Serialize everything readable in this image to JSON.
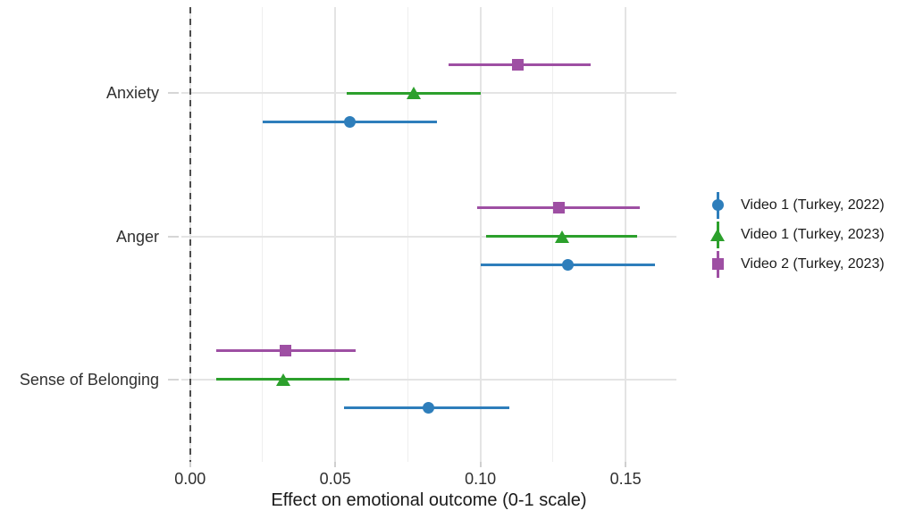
{
  "chart_data": {
    "type": "scatter",
    "subtype": "dot-whisker-pointrange-forest-plot",
    "title": "",
    "xlabel": "Effect on emotional outcome (0-1 scale)",
    "ylabel": "",
    "categories": [
      "Anxiety",
      "Anger",
      "Sense of Belonging"
    ],
    "x_ticks": [
      {
        "value": 0.0,
        "label": "0.00"
      },
      {
        "value": 0.05,
        "label": "0.05"
      },
      {
        "value": 0.1,
        "label": "0.10"
      },
      {
        "value": 0.15,
        "label": "0.15"
      }
    ],
    "x_minor_ticks": [
      0.025,
      0.075,
      0.125
    ],
    "xlim": [
      -0.003,
      0.1675
    ],
    "zero_line": 0.0,
    "grid": true,
    "legend_position": "right",
    "series": [
      {
        "name": "Video 1 (Turkey, 2022)",
        "marker": "circle",
        "color": "#2E7EBB",
        "points": [
          {
            "category": "Anxiety",
            "estimate": 0.055,
            "ci_low": 0.025,
            "ci_high": 0.085
          },
          {
            "category": "Anger",
            "estimate": 0.13,
            "ci_low": 0.1,
            "ci_high": 0.16
          },
          {
            "category": "Sense of Belonging",
            "estimate": 0.082,
            "ci_low": 0.053,
            "ci_high": 0.11
          }
        ]
      },
      {
        "name": "Video 1 (Turkey, 2023)",
        "marker": "triangle",
        "color": "#2CA02C",
        "points": [
          {
            "category": "Anxiety",
            "estimate": 0.077,
            "ci_low": 0.054,
            "ci_high": 0.1
          },
          {
            "category": "Anger",
            "estimate": 0.128,
            "ci_low": 0.102,
            "ci_high": 0.154
          },
          {
            "category": "Sense of Belonging",
            "estimate": 0.032,
            "ci_low": 0.009,
            "ci_high": 0.055
          }
        ]
      },
      {
        "name": "Video 2 (Turkey, 2023)",
        "marker": "square",
        "color": "#9E4FA3",
        "points": [
          {
            "category": "Anxiety",
            "estimate": 0.113,
            "ci_low": 0.089,
            "ci_high": 0.138
          },
          {
            "category": "Anger",
            "estimate": 0.127,
            "ci_low": 0.099,
            "ci_high": 0.155
          },
          {
            "category": "Sense of Belonging",
            "estimate": 0.033,
            "ci_low": 0.009,
            "ci_high": 0.057
          }
        ]
      }
    ]
  }
}
